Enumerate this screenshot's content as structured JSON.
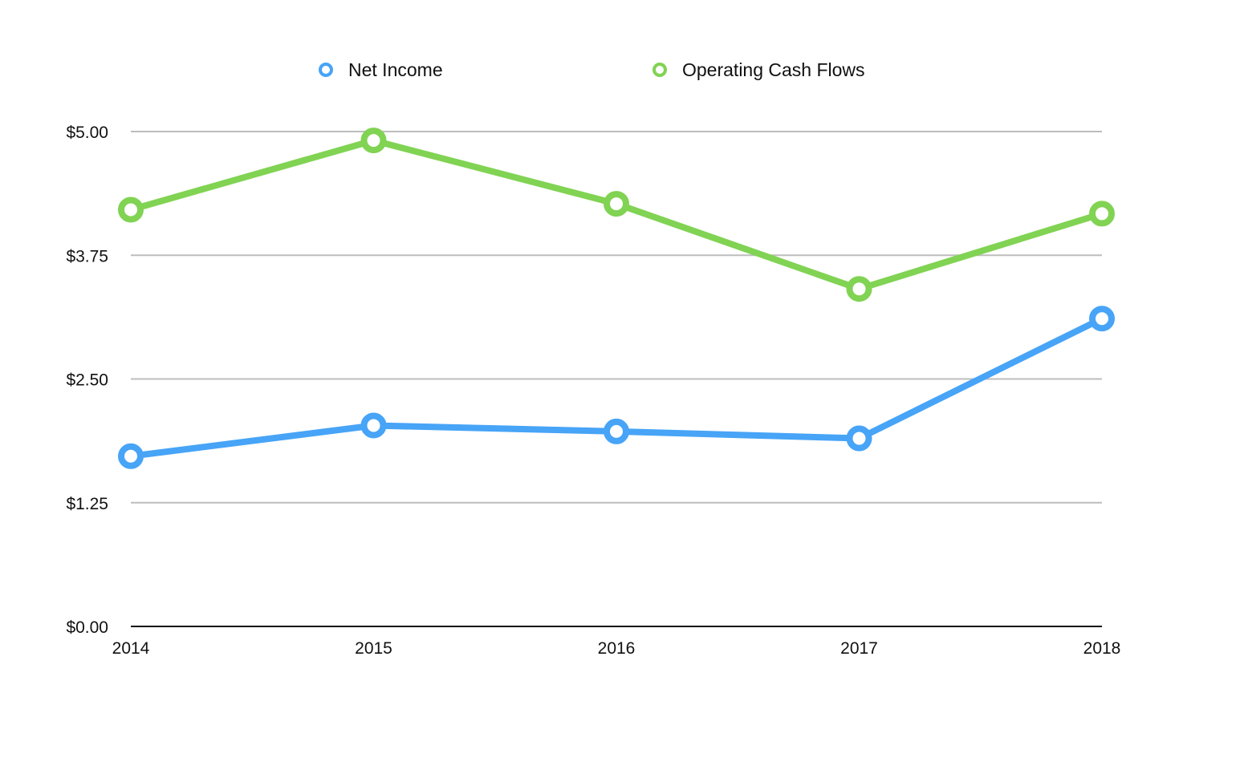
{
  "chart_data": {
    "type": "line",
    "title": "",
    "xlabel": "",
    "ylabel": "",
    "categories": [
      "2014",
      "2015",
      "2016",
      "2017",
      "2018"
    ],
    "series": [
      {
        "name": "Net Income",
        "color": "#47A4F7",
        "values": [
          1.72,
          2.03,
          1.97,
          1.9,
          3.11
        ]
      },
      {
        "name": "Operating Cash Flows",
        "color": "#81D353",
        "values": [
          4.21,
          4.91,
          4.27,
          3.41,
          4.17
        ]
      }
    ],
    "ylim": [
      0,
      5
    ],
    "yticks": [
      0,
      1.25,
      2.5,
      3.75,
      5
    ],
    "ytick_labels": [
      "$0.00",
      "$1.25",
      "$2.50",
      "$3.75",
      "$5.00"
    ],
    "grid": true,
    "legend_position": "top"
  },
  "legend": {
    "items": [
      {
        "label": "Net Income",
        "color": "#47A4F7"
      },
      {
        "label": "Operating Cash Flows",
        "color": "#81D353"
      }
    ]
  },
  "axis": {
    "x_labels": [
      "2014",
      "2015",
      "2016",
      "2017",
      "2018"
    ],
    "y_labels": [
      "$0.00",
      "$1.25",
      "$2.50",
      "$3.75",
      "$5.00"
    ]
  },
  "colors": {
    "grid": "#BDBDBD",
    "axis": "#111111"
  }
}
